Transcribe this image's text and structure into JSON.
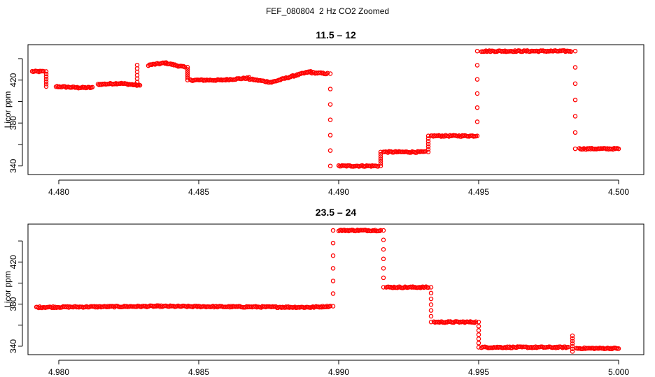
{
  "suptitle": "FEF_080804  2 Hz CO2 Zoomed",
  "colors": {
    "points": "#ff0000",
    "axes": "#000000",
    "background": "#ffffff"
  },
  "chart_data": [
    {
      "type": "scatter",
      "title": "11.5 – 12",
      "xlabel": "",
      "ylabel": "Licor ppm",
      "xlim": [
        4.4789,
        4.5009
      ],
      "ylim": [
        332,
        453
      ],
      "x_ticks": [
        4.48,
        4.485,
        4.49,
        4.495,
        4.5
      ],
      "x_tick_labels": [
        "4.480",
        "4.485",
        "4.490",
        "4.495",
        "4.500"
      ],
      "y_ticks": [
        340,
        360,
        380,
        400,
        420,
        440
      ],
      "y_tick_labels": [
        "340",
        "",
        "380",
        "",
        "420",
        ""
      ],
      "grid": false,
      "series": [
        {
          "marker": "open-circle",
          "segments": [
            {
              "x0": 4.47905,
              "x1": 4.47945,
              "y": [
                428,
                428
              ]
            },
            {
              "x0": 4.4799,
              "x1": 4.4807,
              "y": [
                414,
                413
              ]
            },
            {
              "x0": 4.4807,
              "x1": 4.4812,
              "y": [
                413,
                413
              ]
            },
            {
              "x0": 4.4814,
              "x1": 4.4822,
              "y": [
                416,
                417
              ]
            },
            {
              "x0": 4.4822,
              "x1": 4.4829,
              "y": [
                417,
                415
              ]
            },
            {
              "x0": 4.4832,
              "x1": 4.4838,
              "y": [
                434,
                436
              ]
            },
            {
              "x0": 4.4838,
              "x1": 4.4845,
              "y": [
                436,
                432
              ]
            },
            {
              "x0": 4.4847,
              "x1": 4.4858,
              "y": [
                420,
                420
              ]
            },
            {
              "x0": 4.4858,
              "x1": 4.4868,
              "y": [
                420,
                422
              ]
            },
            {
              "x0": 4.4868,
              "x1": 4.4876,
              "y": [
                421,
                418
              ]
            },
            {
              "x0": 4.4876,
              "x1": 4.4884,
              "y": [
                418,
                424
              ]
            },
            {
              "x0": 4.4884,
              "x1": 4.489,
              "y": [
                424,
                428
              ]
            },
            {
              "x0": 4.489,
              "x1": 4.4896,
              "y": [
                427,
                426
              ]
            },
            {
              "x0": 4.49,
              "x1": 4.4914,
              "y": [
                340,
                340
              ]
            },
            {
              "x0": 4.4916,
              "x1": 4.4931,
              "y": [
                353,
                353
              ]
            },
            {
              "x0": 4.4933,
              "x1": 4.4949,
              "y": [
                368,
                368
              ]
            },
            {
              "x0": 4.4951,
              "x1": 4.4983,
              "y": [
                447,
                447
              ]
            },
            {
              "x0": 4.4986,
              "x1": 4.5,
              "y": [
                356,
                356
              ]
            }
          ],
          "transitions": [
            {
              "x": 4.47955,
              "y": [
                428,
                414
              ]
            },
            {
              "x": 4.4828,
              "y": [
                415,
                434
              ]
            },
            {
              "x": 4.4846,
              "y": [
                432,
                420
              ]
            },
            {
              "x": 4.4897,
              "y": [
                426,
                340
              ]
            },
            {
              "x": 4.4915,
              "y": [
                340,
                353
              ]
            },
            {
              "x": 4.4932,
              "y": [
                353,
                368
              ]
            },
            {
              "x": 4.49495,
              "y": [
                368,
                447
              ]
            },
            {
              "x": 4.49845,
              "y": [
                447,
                356
              ]
            }
          ]
        }
      ]
    },
    {
      "type": "scatter",
      "title": "23.5 – 24",
      "xlabel": "",
      "ylabel": "Licor ppm",
      "xlim": [
        4.9789,
        5.0009
      ],
      "ylim": [
        332,
        456
      ],
      "x_ticks": [
        4.98,
        4.985,
        4.99,
        4.995,
        5.0
      ],
      "x_tick_labels": [
        "4.980",
        "4.985",
        "4.990",
        "4.995",
        "5.000"
      ],
      "y_ticks": [
        340,
        360,
        380,
        400,
        420,
        440
      ],
      "y_tick_labels": [
        "340",
        "",
        "380",
        "",
        "420",
        ""
      ],
      "grid": false,
      "series": [
        {
          "marker": "open-circle",
          "segments": [
            {
              "x0": 4.9792,
              "x1": 4.9835,
              "y": [
                377,
                378
              ]
            },
            {
              "x0": 4.9835,
              "x1": 4.989,
              "y": [
                378,
                377
              ]
            },
            {
              "x0": 4.989,
              "x1": 4.9897,
              "y": [
                377,
                378
              ]
            },
            {
              "x0": 4.99,
              "x1": 4.9915,
              "y": [
                450,
                450
              ]
            },
            {
              "x0": 4.9917,
              "x1": 4.9932,
              "y": [
                396,
                396
              ]
            },
            {
              "x0": 4.9934,
              "x1": 4.9949,
              "y": [
                363,
                363
              ]
            },
            {
              "x0": 4.9951,
              "x1": 4.9982,
              "y": [
                339,
                339
              ]
            },
            {
              "x0": 4.9985,
              "x1": 5.0,
              "y": [
                338,
                338
              ]
            }
          ],
          "transitions": [
            {
              "x": 4.9898,
              "y": [
                378,
                450
              ]
            },
            {
              "x": 4.9916,
              "y": [
                450,
                396
              ]
            },
            {
              "x": 4.9933,
              "y": [
                396,
                363
              ]
            },
            {
              "x": 4.995,
              "y": [
                363,
                339
              ]
            },
            {
              "x": 4.99835,
              "y": [
                335,
                350
              ]
            }
          ]
        }
      ]
    }
  ]
}
